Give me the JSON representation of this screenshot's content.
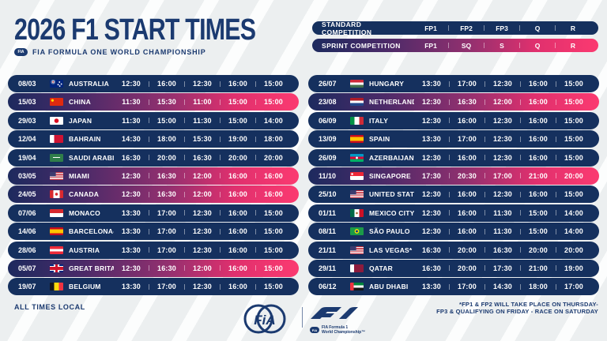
{
  "header": {
    "title": "2026 F1 START TIMES",
    "badge": "FIA",
    "subtitle": "FIA FORMULA ONE WORLD CHAMPIONSHIP"
  },
  "legend": {
    "standard": {
      "label": "STANDARD COMPETITION",
      "columns": [
        "FP1",
        "FP2",
        "FP3",
        "Q",
        "R"
      ]
    },
    "sprint": {
      "label": "SPRINT COMPETITION",
      "columns": [
        "FP1",
        "SQ",
        "S",
        "Q",
        "R"
      ]
    }
  },
  "races": {
    "left": [
      {
        "date": "08/03",
        "country": "AUSTRALIA",
        "flag": "australia",
        "sprint": false,
        "times": [
          "12:30",
          "16:00",
          "12:30",
          "16:00",
          "15:00"
        ]
      },
      {
        "date": "15/03",
        "country": "CHINA",
        "flag": "china",
        "sprint": true,
        "times": [
          "11:30",
          "15:30",
          "11:00",
          "15:00",
          "15:00"
        ]
      },
      {
        "date": "29/03",
        "country": "JAPAN",
        "flag": "japan",
        "sprint": false,
        "times": [
          "11:30",
          "15:00",
          "11:30",
          "15:00",
          "14:00"
        ]
      },
      {
        "date": "12/04",
        "country": "BAHRAIN",
        "flag": "bahrain",
        "sprint": false,
        "times": [
          "14:30",
          "18:00",
          "15:30",
          "19:00",
          "18:00"
        ]
      },
      {
        "date": "19/04",
        "country": "SAUDI ARABIA",
        "flag": "saudi-arabia",
        "sprint": false,
        "times": [
          "16:30",
          "20:00",
          "16:30",
          "20:00",
          "20:00"
        ]
      },
      {
        "date": "03/05",
        "country": "MIAMI",
        "flag": "usa",
        "sprint": true,
        "times": [
          "12:30",
          "16:30",
          "12:00",
          "16:00",
          "16:00"
        ]
      },
      {
        "date": "24/05",
        "country": "CANADA",
        "flag": "canada",
        "sprint": true,
        "times": [
          "12:30",
          "16:30",
          "12:00",
          "16:00",
          "16:00"
        ]
      },
      {
        "date": "07/06",
        "country": "MONACO",
        "flag": "monaco",
        "sprint": false,
        "times": [
          "13:30",
          "17:00",
          "12:30",
          "16:00",
          "15:00"
        ]
      },
      {
        "date": "14/06",
        "country": "BARCELONA-CATALUNYA",
        "flag": "spain",
        "sprint": false,
        "times": [
          "13:30",
          "17:00",
          "12:30",
          "16:00",
          "15:00"
        ]
      },
      {
        "date": "28/06",
        "country": "AUSTRIA",
        "flag": "austria",
        "sprint": false,
        "times": [
          "13:30",
          "17:00",
          "12:30",
          "16:00",
          "15:00"
        ]
      },
      {
        "date": "05/07",
        "country": "GREAT BRITAIN",
        "flag": "great-britain",
        "sprint": true,
        "times": [
          "12:30",
          "16:30",
          "12:00",
          "16:00",
          "15:00"
        ]
      },
      {
        "date": "19/07",
        "country": "BELGIUM",
        "flag": "belgium",
        "sprint": false,
        "times": [
          "13:30",
          "17:00",
          "12:30",
          "16:00",
          "15:00"
        ]
      }
    ],
    "right": [
      {
        "date": "26/07",
        "country": "HUNGARY",
        "flag": "hungary",
        "sprint": false,
        "times": [
          "13:30",
          "17:00",
          "12:30",
          "16:00",
          "15:00"
        ]
      },
      {
        "date": "23/08",
        "country": "NETHERLANDS",
        "flag": "netherlands",
        "sprint": true,
        "times": [
          "12:30",
          "16:30",
          "12:00",
          "16:00",
          "15:00"
        ]
      },
      {
        "date": "06/09",
        "country": "ITALY",
        "flag": "italy",
        "sprint": false,
        "times": [
          "12:30",
          "16:00",
          "12:30",
          "16:00",
          "15:00"
        ]
      },
      {
        "date": "13/09",
        "country": "SPAIN",
        "flag": "spain",
        "sprint": false,
        "times": [
          "13:30",
          "17:00",
          "12:30",
          "16:00",
          "15:00"
        ]
      },
      {
        "date": "26/09",
        "country": "AZERBAIJAN*",
        "flag": "azerbaijan",
        "sprint": false,
        "times": [
          "12:30",
          "16:00",
          "12:30",
          "16:00",
          "15:00"
        ]
      },
      {
        "date": "11/10",
        "country": "SINGAPORE",
        "flag": "singapore",
        "sprint": true,
        "times": [
          "17:30",
          "20:30",
          "17:00",
          "21:00",
          "20:00"
        ]
      },
      {
        "date": "25/10",
        "country": "UNITED STATES",
        "flag": "usa",
        "sprint": false,
        "times": [
          "12:30",
          "16:00",
          "12:30",
          "16:00",
          "15:00"
        ]
      },
      {
        "date": "01/11",
        "country": "MEXICO CITY",
        "flag": "mexico",
        "sprint": false,
        "times": [
          "12:30",
          "16:00",
          "11:30",
          "15:00",
          "14:00"
        ]
      },
      {
        "date": "08/11",
        "country": "SÃO PAULO",
        "flag": "brazil",
        "sprint": false,
        "times": [
          "12:30",
          "16:00",
          "11:30",
          "15:00",
          "14:00"
        ]
      },
      {
        "date": "21/11",
        "country": "LAS VEGAS*",
        "flag": "usa",
        "sprint": false,
        "times": [
          "16:30",
          "20:00",
          "16:30",
          "20:00",
          "20:00"
        ]
      },
      {
        "date": "29/11",
        "country": "QATAR",
        "flag": "qatar",
        "sprint": false,
        "times": [
          "16:30",
          "20:00",
          "17:30",
          "21:00",
          "19:00"
        ]
      },
      {
        "date": "06/12",
        "country": "ABU DHABI",
        "flag": "uae",
        "sprint": false,
        "times": [
          "13:30",
          "17:00",
          "14:30",
          "18:00",
          "17:00"
        ]
      }
    ]
  },
  "footer": {
    "all_times": "ALL TIMES LOCAL",
    "fia_logo_text": "FiA",
    "f1_caption_badge": "FIA",
    "f1_caption_line1": "FIA Formula 1",
    "f1_caption_line2": "World Championship™",
    "note_line1": "*FP1 & FP2 WILL TAKE PLACE ON THURSDAY-",
    "note_line2": "FP3 & QUALIFYING ON FRIDAY - RACE ON SATURDAY"
  },
  "colors": {
    "navy": "#15305E",
    "title_navy": "#1B3A70",
    "pink": "#FB3A70",
    "sprint_gradient_mid": "#93306F",
    "background_gray": "#ECEFF0",
    "stripe_white": "#FCFDFD",
    "text_on_rows": "#FFFFFF"
  }
}
